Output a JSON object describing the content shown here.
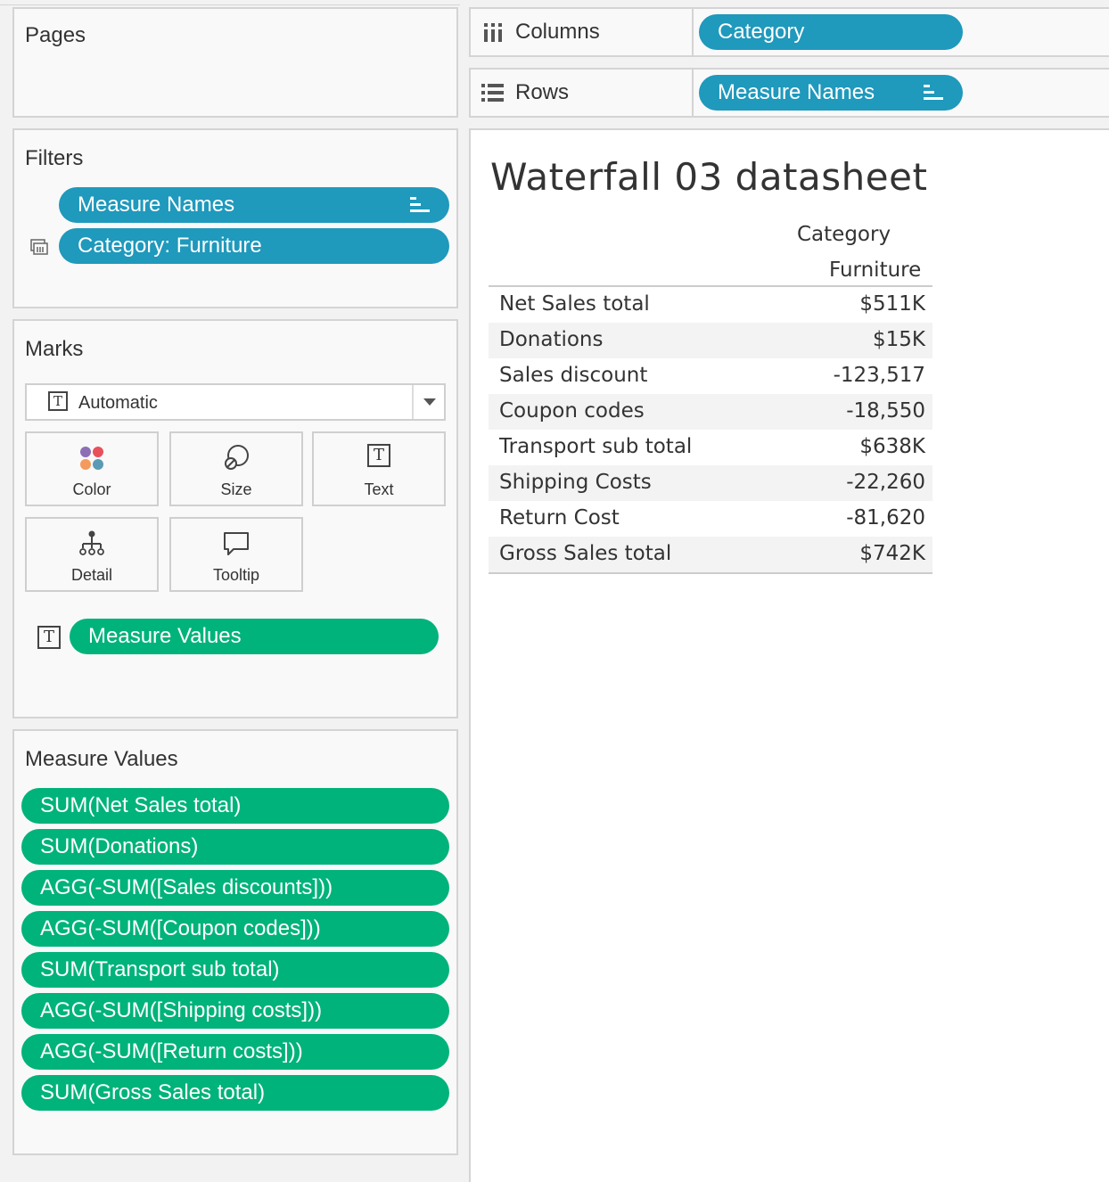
{
  "pages": {
    "title": "Pages"
  },
  "filters": {
    "title": "Filters",
    "pills": [
      {
        "label": "Measure Names"
      },
      {
        "label": "Category: Furniture"
      }
    ]
  },
  "marks": {
    "title": "Marks",
    "mark_type": "Automatic",
    "buttons": {
      "color": "Color",
      "size": "Size",
      "text": "Text",
      "detail": "Detail",
      "tooltip": "Tooltip"
    },
    "text_pill": "Measure Values"
  },
  "measure_values": {
    "title": "Measure Values",
    "items": [
      "SUM(Net Sales total)",
      "SUM(Donations)",
      "AGG(-SUM([Sales discounts]))",
      "AGG(-SUM([Coupon codes]))",
      "SUM(Transport sub total)",
      "AGG(-SUM([Shipping costs]))",
      "AGG(-SUM([Return costs]))",
      "SUM(Gross Sales total)"
    ]
  },
  "shelves": {
    "columns_label": "Columns",
    "columns_pill": "Category",
    "rows_label": "Rows",
    "rows_pill": "Measure Names"
  },
  "view": {
    "title": "Waterfall 03 datasheet",
    "col_header": "Category",
    "col_value": "Furniture",
    "rows": [
      {
        "label": "Net Sales total",
        "value": "$511K"
      },
      {
        "label": "Donations",
        "value": "$15K"
      },
      {
        "label": "Sales discount",
        "value": "-123,517"
      },
      {
        "label": "Coupon codes",
        "value": "-18,550"
      },
      {
        "label": "Transport sub total",
        "value": "$638K"
      },
      {
        "label": "Shipping Costs",
        "value": "-22,260"
      },
      {
        "label": "Return Cost",
        "value": "-81,620"
      },
      {
        "label": "Gross Sales total",
        "value": "$742K"
      }
    ]
  },
  "colors": {
    "blue_pill": "#1f99bc",
    "green_pill": "#00b37a",
    "panel_bg": "#f9f9f9",
    "border": "#d4d4d4"
  }
}
